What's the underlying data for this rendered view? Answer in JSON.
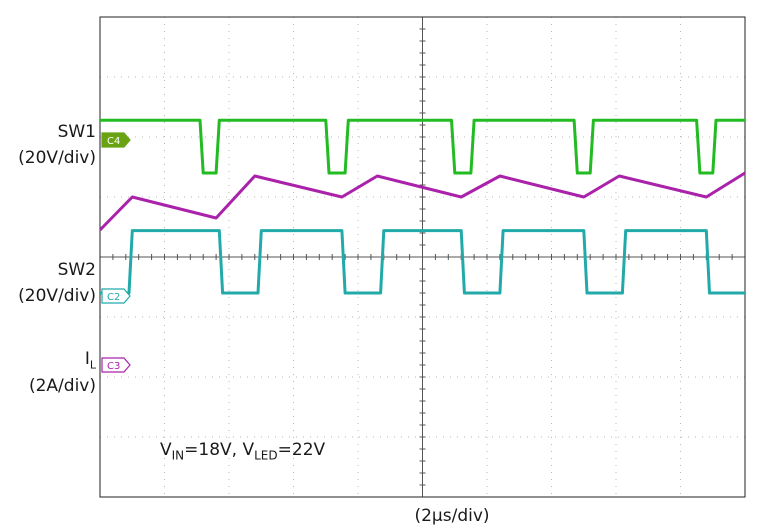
{
  "labels": {
    "sw1_name": "SW1",
    "sw1_scale": "(20V/div)",
    "sw2_name": "SW2",
    "sw2_scale": "(20V/div)",
    "il_main": "I",
    "il_sub": "L",
    "il_scale": "(2A/div)",
    "time_scale": "(2μs/div)",
    "annotation": {
      "vin_main": "V",
      "vin_sub": "IN",
      "vin_value": "=18V, ",
      "vled_main": "V",
      "vled_sub": "LED",
      "vled_value": "=22V"
    }
  },
  "markers": {
    "c4": "C4",
    "c2": "C2",
    "c3": "C3"
  },
  "colors": {
    "sw1": "#22bb22",
    "sw2": "#22aaaa",
    "il": "#aa22aa",
    "marker_c4": "#6aa312"
  },
  "chart_data": {
    "type": "line",
    "xlabel": "(2μs/div)",
    "grid": true,
    "divisions": {
      "x": 10,
      "y": 8
    },
    "xlim": [
      0,
      10
    ],
    "series": [
      {
        "name": "SW1",
        "unit_label": "(20V/div)",
        "x": [
          0,
          1.55,
          1.6,
          1.8,
          1.85,
          3.5,
          3.55,
          3.8,
          3.85,
          5.45,
          5.5,
          5.75,
          5.8,
          7.35,
          7.4,
          7.6,
          7.65,
          9.25,
          9.3,
          9.5,
          9.55,
          10
        ],
        "level": [
          "high",
          "high",
          "low",
          "low",
          "high",
          "high",
          "low",
          "low",
          "high",
          "high",
          "low",
          "low",
          "high",
          "high",
          "low",
          "low",
          "high",
          "high",
          "low",
          "low",
          "high",
          "high"
        ]
      },
      {
        "name": "SW2",
        "unit_label": "(20V/div)",
        "x": [
          0,
          0.45,
          0.5,
          1.85,
          1.9,
          2.45,
          2.5,
          3.75,
          3.8,
          4.35,
          4.4,
          5.6,
          5.65,
          6.2,
          6.25,
          7.5,
          7.55,
          8.1,
          8.15,
          9.4,
          9.45,
          10
        ],
        "level": [
          "low",
          "low",
          "high",
          "high",
          "low",
          "low",
          "high",
          "high",
          "low",
          "low",
          "high",
          "high",
          "low",
          "low",
          "high",
          "high",
          "low",
          "low",
          "high",
          "high",
          "low",
          "low"
        ]
      },
      {
        "name": "IL",
        "unit_label": "(2A/div)",
        "x": [
          0,
          0.5,
          1.8,
          2.4,
          3.75,
          4.3,
          5.6,
          6.2,
          7.5,
          8.05,
          9.4,
          10
        ],
        "div_y": [
          3.55,
          3.0,
          3.35,
          2.65,
          3.0,
          2.65,
          3.0,
          2.65,
          3.0,
          2.65,
          3.0,
          2.6
        ]
      }
    ]
  }
}
